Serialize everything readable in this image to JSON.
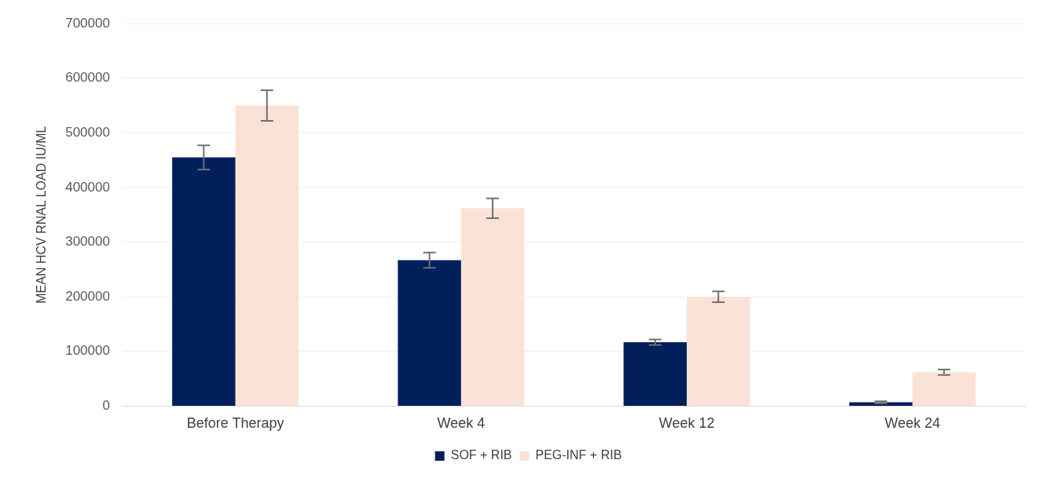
{
  "chart_data": {
    "type": "bar",
    "ylabel": "MEAN HCV RNAL LOAD IU/ML",
    "categories": [
      "Before Therapy",
      "Week 4",
      "Week 12",
      "Week 24"
    ],
    "series": [
      {
        "name": "SOF + RIB",
        "color": "#001f5b",
        "values": [
          455000,
          267000,
          117000,
          7000
        ],
        "errors": [
          22000,
          14000,
          5000,
          2000
        ]
      },
      {
        "name": "PEG-INF + RIB",
        "color": "#fae3d6",
        "values": [
          550000,
          362000,
          200000,
          62000
        ],
        "errors": [
          28000,
          18000,
          10000,
          5000
        ]
      }
    ],
    "ylim": [
      0,
      700000
    ],
    "yticks": [
      0,
      100000,
      200000,
      300000,
      400000,
      500000,
      600000,
      700000
    ],
    "grid": "y",
    "legend": "bottom"
  }
}
